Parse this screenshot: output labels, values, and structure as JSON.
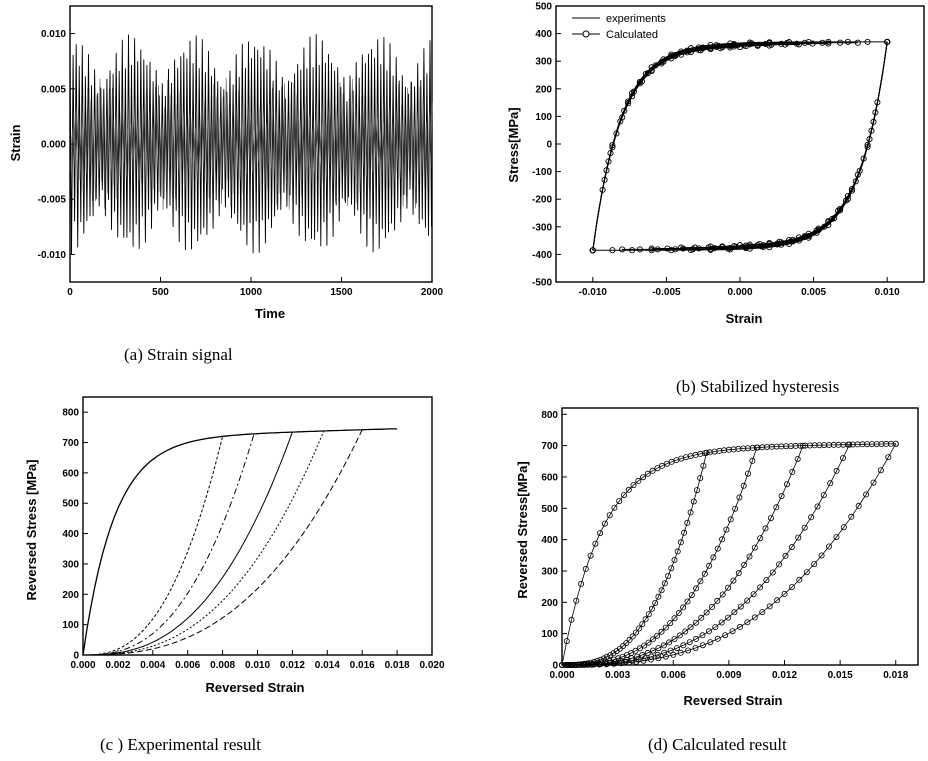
{
  "chart_data": [
    {
      "type": "line",
      "caption": "(a) Strain signal",
      "xlabel": "Time",
      "ylabel": "Strain",
      "xlim": [
        0,
        2000
      ],
      "ylim": [
        -0.0125,
        0.0125
      ],
      "xticks": [
        0,
        500,
        1000,
        1500,
        2000
      ],
      "xtick_labels": [
        "0",
        "500",
        "1000",
        "1500",
        "2000"
      ],
      "yticks": [
        -0.01,
        -0.005,
        0.0,
        0.005,
        0.01
      ],
      "ytick_labels": [
        "-0.010",
        "-0.005",
        "0.000",
        "0.005",
        "0.010"
      ],
      "signal": {
        "amplitude_max": 0.01,
        "envelope_period": 340,
        "cycle_period": 17
      },
      "grid": false
    },
    {
      "type": "line",
      "caption": "(b) Stabilized hysteresis",
      "xlabel": "Strain",
      "ylabel": "Stress[MPa]",
      "xlim": [
        -0.0125,
        0.0125
      ],
      "ylim": [
        -500,
        500
      ],
      "xticks": [
        -0.01,
        -0.005,
        0.0,
        0.005,
        0.01
      ],
      "xtick_labels": [
        "-0.010",
        "-0.005",
        "0.000",
        "0.005",
        "0.010"
      ],
      "yticks": [
        -500,
        -400,
        -300,
        -200,
        -100,
        0,
        100,
        200,
        300,
        400,
        500
      ],
      "ytick_labels": [
        "-500",
        "-400",
        "-300",
        "-200",
        "-100",
        "0",
        "100",
        "200",
        "300",
        "400",
        "500"
      ],
      "legend": [
        "experiments",
        "Calculated"
      ],
      "legend_position": "top-left",
      "loop_tips": [
        [
          0.01,
          370
        ],
        [
          -0.01,
          -385
        ]
      ],
      "loop_turning_strains_from_max": [
        0.0,
        -0.002,
        -0.004,
        -0.006,
        -0.008,
        -0.01
      ],
      "loop_turning_strains_from_min": [
        0.0,
        0.002,
        0.004,
        0.006,
        0.008,
        0.01
      ],
      "grid": false
    },
    {
      "type": "line",
      "caption": "(c ) Experimental result",
      "xlabel": "Reversed Strain",
      "ylabel": "Reversed Stress [MPa]",
      "xlim": [
        0,
        0.02
      ],
      "ylim": [
        0,
        850
      ],
      "xticks": [
        0,
        0.002,
        0.004,
        0.006,
        0.008,
        0.01,
        0.012,
        0.014,
        0.016,
        0.018,
        0.02
      ],
      "xtick_labels": [
        "0.000",
        "0.002",
        "0.004",
        "0.006",
        "0.008",
        "0.010",
        "0.012",
        "0.014",
        "0.016",
        "0.018",
        "0.020"
      ],
      "yticks": [
        0,
        100,
        200,
        300,
        400,
        500,
        600,
        700,
        800
      ],
      "ytick_labels": [
        "0",
        "100",
        "200",
        "300",
        "400",
        "500",
        "600",
        "700",
        "800"
      ],
      "max_point": [
        0.018,
        745
      ],
      "branch_start_strains": [
        0.008,
        0.0098,
        0.012,
        0.0138,
        0.016
      ],
      "grid": false
    },
    {
      "type": "scatter",
      "caption": "(d) Calculated result",
      "xlabel": "Reversed Strain",
      "ylabel": "Reversed Stress[MPa]",
      "xlim": [
        0,
        0.0192
      ],
      "ylim": [
        0,
        820
      ],
      "xticks": [
        0,
        0.003,
        0.006,
        0.009,
        0.012,
        0.015,
        0.018
      ],
      "xtick_labels": [
        "0.000",
        "0.003",
        "0.006",
        "0.009",
        "0.012",
        "0.015",
        "0.018"
      ],
      "yticks": [
        0,
        100,
        200,
        300,
        400,
        500,
        600,
        700,
        800
      ],
      "ytick_labels": [
        "0",
        "100",
        "200",
        "300",
        "400",
        "500",
        "600",
        "700",
        "800"
      ],
      "max_point": [
        0.018,
        770
      ],
      "branch_start_strains": [
        0.0078,
        0.0105,
        0.013,
        0.0155,
        0.018
      ],
      "grid": false
    }
  ]
}
